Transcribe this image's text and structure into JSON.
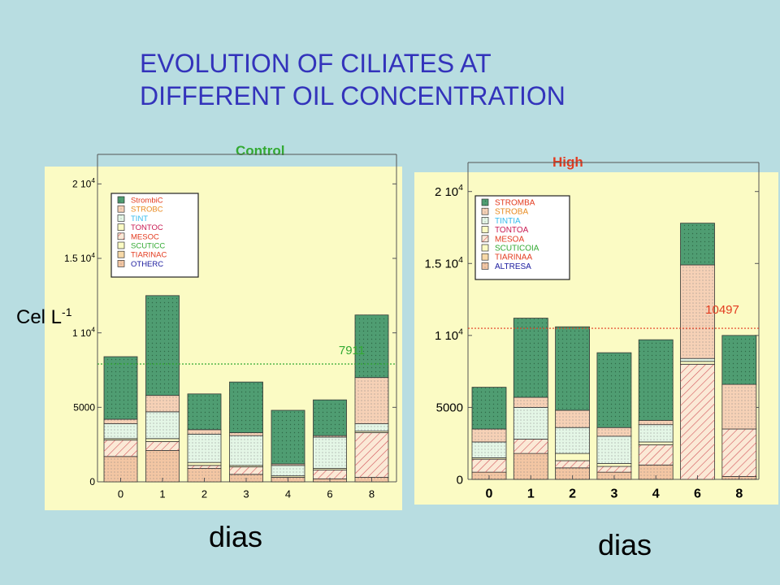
{
  "title": {
    "line1": "EVOLUTION OF CILIATES AT",
    "line2": "DIFFERENT OIL CONCENTRATION"
  },
  "y_axis_label": {
    "text": "Cel L",
    "sup": "-1"
  },
  "colors": {
    "background": "#b8dde1",
    "plot_background": "#fbfbc4",
    "title": "#3333bb",
    "control_label": "#33aa33",
    "high_label": "#e33b1f"
  },
  "chart_data": [
    {
      "type": "bar",
      "stacked": true,
      "title": "Control",
      "xlabel": "dias",
      "categories": [
        "0",
        "1",
        "2",
        "3",
        "4",
        "6",
        "8"
      ],
      "ylim": [
        0,
        21000
      ],
      "ytick_labels": [
        {
          "value": 0,
          "label": "0"
        },
        {
          "value": 5000,
          "label": "5000"
        },
        {
          "value": 10000,
          "label": "1 10",
          "exp": "4"
        },
        {
          "value": 15000,
          "label": "1.5 10",
          "exp": "4"
        },
        {
          "value": 20000,
          "label": "2 10",
          "exp": "4"
        }
      ],
      "reference_line": {
        "value": 7911,
        "label": "7911",
        "color": "#33aa33"
      },
      "series": [
        {
          "name": "OTHERC",
          "color": "#f3c6a3",
          "pattern": "dots",
          "values": [
            1700,
            2100,
            900,
            500,
            300,
            200,
            300
          ]
        },
        {
          "name": "TIARINAC",
          "color": "#f7d9a8",
          "pattern": "none",
          "values": [
            0,
            0,
            0,
            0,
            0,
            0,
            0
          ]
        },
        {
          "name": "SCUTICC",
          "color": "#fbfbc4",
          "pattern": "none",
          "values": [
            0,
            0,
            0,
            0,
            0,
            0,
            0
          ]
        },
        {
          "name": "MESOC",
          "color": "#fbe9d6",
          "pattern": "hatch",
          "values": [
            1100,
            600,
            200,
            500,
            0,
            600,
            3000
          ]
        },
        {
          "name": "TONTOC",
          "color": "#fbfbc4",
          "pattern": "none",
          "values": [
            100,
            200,
            200,
            100,
            100,
            100,
            100
          ]
        },
        {
          "name": "TINT",
          "color": "#e4f6e6",
          "pattern": "dots",
          "values": [
            1000,
            1800,
            1900,
            2000,
            700,
            2100,
            500
          ]
        },
        {
          "name": "STROBC",
          "color": "#f6d1b6",
          "pattern": "dots",
          "values": [
            300,
            1100,
            300,
            200,
            100,
            100,
            3100
          ]
        },
        {
          "name": "StrombiC",
          "color": "#4f9d72",
          "pattern": "grid",
          "values": [
            4200,
            6700,
            2400,
            3400,
            3600,
            2400,
            4200
          ]
        }
      ]
    },
    {
      "type": "bar",
      "stacked": true,
      "title": "High",
      "xlabel": "dias",
      "categories": [
        "0",
        "1",
        "2",
        "3",
        "4",
        "6",
        "8"
      ],
      "ylim": [
        0,
        21000
      ],
      "ytick_labels": [
        {
          "value": 0,
          "label": "0"
        },
        {
          "value": 5000,
          "label": "5000"
        },
        {
          "value": 10000,
          "label": "1 10",
          "exp": "4"
        },
        {
          "value": 15000,
          "label": "1.5 10",
          "exp": "4"
        },
        {
          "value": 20000,
          "label": "2 10",
          "exp": "4"
        }
      ],
      "reference_line": {
        "value": 10497,
        "label": "10497",
        "color": "#e33b1f"
      },
      "series": [
        {
          "name": "ALTRESA",
          "color": "#f3c6a3",
          "pattern": "dots",
          "values": [
            500,
            1800,
            800,
            500,
            1000,
            0,
            200
          ]
        },
        {
          "name": "TIARINAA",
          "color": "#f7d9a8",
          "pattern": "none",
          "values": [
            0,
            0,
            0,
            0,
            0,
            0,
            0
          ]
        },
        {
          "name": "SCUTICOIA",
          "color": "#fbfbc4",
          "pattern": "none",
          "values": [
            0,
            0,
            0,
            0,
            0,
            0,
            0
          ]
        },
        {
          "name": "MESOA",
          "color": "#fbe9d6",
          "pattern": "hatch",
          "values": [
            900,
            1000,
            500,
            400,
            1400,
            8000,
            3300
          ]
        },
        {
          "name": "TONTOA",
          "color": "#fbfbc4",
          "pattern": "none",
          "values": [
            100,
            0,
            500,
            200,
            200,
            200,
            0
          ]
        },
        {
          "name": "TINTIA",
          "color": "#e4f6e6",
          "pattern": "dots",
          "values": [
            1100,
            2200,
            1800,
            1900,
            1200,
            200,
            0
          ]
        },
        {
          "name": "STROBA",
          "color": "#f6d1b6",
          "pattern": "dots",
          "values": [
            900,
            700,
            1200,
            600,
            300,
            6500,
            3100
          ]
        },
        {
          "name": "STROMBA",
          "color": "#4f9d72",
          "pattern": "grid",
          "values": [
            2900,
            5500,
            5800,
            5200,
            5600,
            2900,
            3400
          ]
        }
      ]
    }
  ]
}
